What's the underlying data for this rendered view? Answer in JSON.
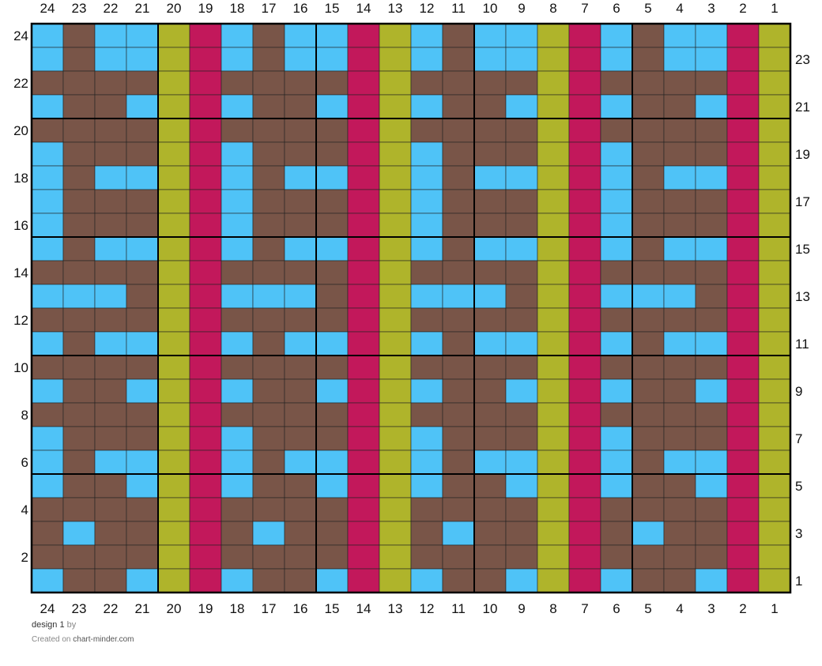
{
  "chart_data": {
    "type": "heatmap",
    "title": "design 1",
    "columns": 24,
    "rows": 24,
    "column_labels": [
      "24",
      "23",
      "22",
      "21",
      "20",
      "19",
      "18",
      "17",
      "16",
      "15",
      "14",
      "13",
      "12",
      "11",
      "10",
      "9",
      "8",
      "7",
      "6",
      "5",
      "4",
      "3",
      "2",
      "1"
    ],
    "row_labels_left": [
      "24",
      "22",
      "20",
      "18",
      "16",
      "14",
      "12",
      "10",
      "8",
      "6",
      "4",
      "2"
    ],
    "row_labels_right": [
      "23",
      "21",
      "19",
      "17",
      "15",
      "13",
      "11",
      "9",
      "7",
      "5",
      "3",
      "1"
    ],
    "legend": {
      "B": {
        "name": "blue",
        "color": "#4FC3F7"
      },
      "R": {
        "name": "brown",
        "color": "#795548"
      },
      "G": {
        "name": "olive",
        "color": "#AFB42B"
      },
      "M": {
        "name": "magenta",
        "color": "#C2185B"
      }
    },
    "grid": true,
    "rows_top_to_bottom": [
      "BRBBGMBRBBMGBRBBGMBRBBMG",
      "BRBBGMBRBBMGBRBBGMBRBBMG",
      "RRRRGMRRRRMGRRRRGMRRRRMG",
      "BRRBGMBRRBMGBRRBGMBRRBMG",
      "RRRRGMRRRRMGRRRRGMRRRRMG",
      "BRRRGMBRRRMGBRRRGMBRRRMG",
      "BRBBGMBRBBMGBRBBGMBRBBMG",
      "BRRRGMBRRRMGBRRRGMBRRRMG",
      "BRRRGMBRRRMGBRRRGMBRRRMG",
      "BRBBGMBRBBMGBRBBGMBRBBMG",
      "RRRRGMRRRRMGRRRRGMRRRRMG",
      "BBBRGMBBBRMGBBBRGMBBBRMG",
      "RRRRGMRRRRMGRRRRGMRRRRMG",
      "BRBBGMBRBBMGBRBBGMBRBBMG",
      "RRRRGMRRRRMGRRRRGMRRRRMG",
      "BRRBGMBRRBMGBRRBGMBRRBMG",
      "RRRRGMRRRRMGRRRRGMRRRRMG",
      "BRRRGMBRRRMGBRRRGMBRRRMG",
      "BRBBGMBRBBMGBRBBGMBRBBMG",
      "BRRBGMBRRBMGBRRBGMBRRBMG",
      "RRRRGMRRRRMGRRRRGMRRRRMG",
      "RBRRGMRBRRMGRBRRGMRBRRMG",
      "RRRRGMRRRRMGRRRRGMRRRRMG",
      "BRRBGMBRRBMGBRRBGMBRRBMG"
    ]
  },
  "footer": {
    "design_name": "design 1",
    "by_text": "by",
    "created_on_text": "Created on",
    "site": "chart-minder.com"
  }
}
